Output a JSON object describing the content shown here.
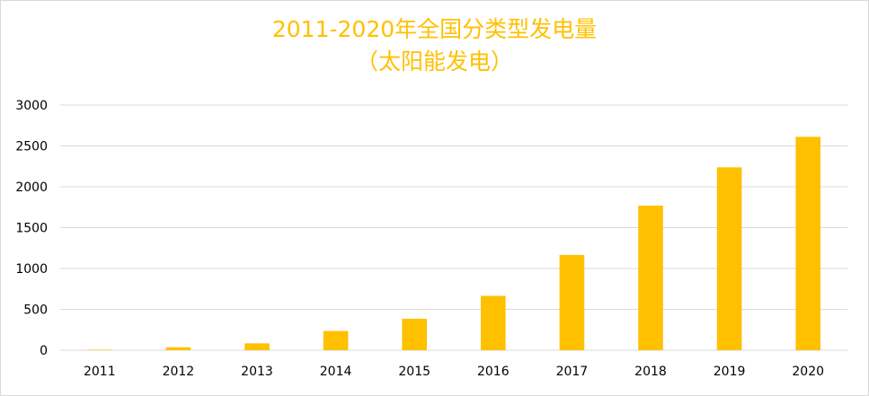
{
  "chart_data": {
    "type": "bar",
    "title": "2011-2020年全国分类型发电量",
    "subtitle": "（太阳能发电）",
    "categories": [
      "2011",
      "2012",
      "2013",
      "2014",
      "2015",
      "2016",
      "2017",
      "2018",
      "2019",
      "2020"
    ],
    "values": [
      6,
      36,
      84,
      235,
      385,
      665,
      1166,
      1769,
      2238,
      2611
    ],
    "ylim": [
      0,
      3000
    ],
    "yticks": [
      "0",
      "500",
      "1000",
      "1500",
      "2000",
      "2500",
      "3000"
    ],
    "grid": true,
    "legend": "none",
    "bar_color": "#FFC000",
    "grid_color": "#d9d9d9"
  }
}
